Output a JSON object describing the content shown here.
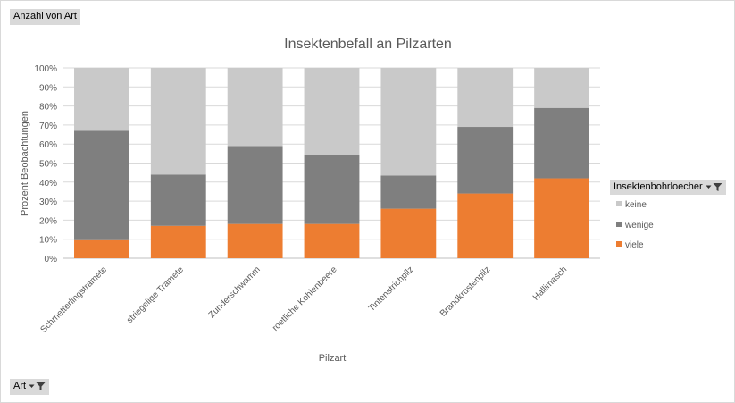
{
  "value_field_button": "Anzahl von Art",
  "axis_field_button": "Art",
  "legend_field_button": "Insektenbohrloecher",
  "icons": {
    "dropdown": "chevron-down-icon",
    "filter": "filter-icon"
  },
  "colors": {
    "keine": "#c9c9c9",
    "wenige": "#7f7f7f",
    "viele": "#ed7d31"
  },
  "chart_data": {
    "type": "bar",
    "stacking": "percent",
    "title": "Insektenbefall an Pilzarten",
    "xlabel": "Pilzart",
    "ylabel": "Prozent Beobachtungen",
    "ylim": [
      0,
      100
    ],
    "yticks": [
      "0%",
      "10%",
      "20%",
      "30%",
      "40%",
      "50%",
      "60%",
      "70%",
      "80%",
      "90%",
      "100%"
    ],
    "grid": true,
    "legend_position": "right",
    "categories": [
      "Schmetterlingstramete",
      "striegelige Tramete",
      "Zunderschwamm",
      "roetliche Kohlenbeere",
      "Tintenstrichpilz",
      "Brandkrustenpilz",
      "Hallimasch"
    ],
    "series": [
      {
        "name": "viele",
        "values": [
          9.5,
          17,
          18,
          18,
          26,
          34,
          42
        ]
      },
      {
        "name": "wenige",
        "values": [
          57.5,
          27,
          41,
          36,
          17.5,
          35,
          37
        ]
      },
      {
        "name": "keine",
        "values": [
          33,
          56,
          41,
          46,
          56.5,
          31,
          21
        ]
      }
    ],
    "legend_order": [
      "keine",
      "wenige",
      "viele"
    ]
  }
}
